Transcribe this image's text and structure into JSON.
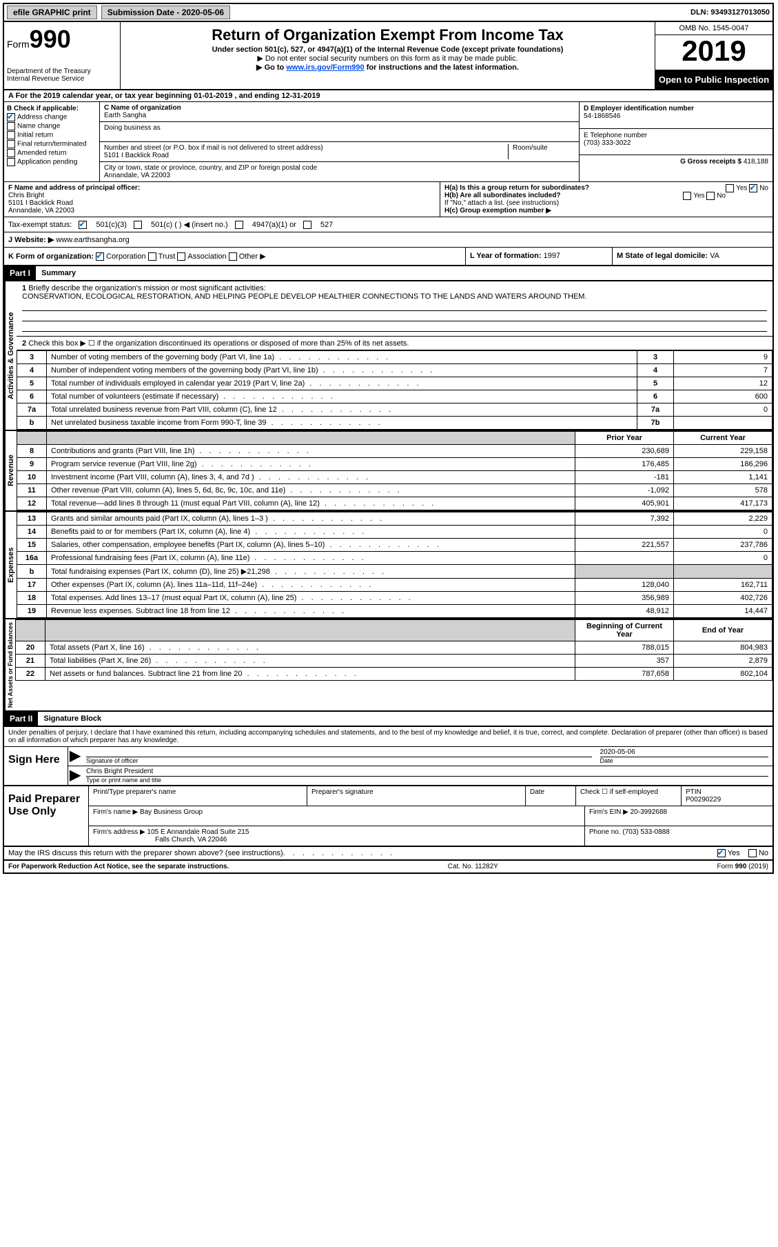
{
  "topbar": {
    "efile": "efile GRAPHIC print",
    "submission_label": "Submission Date - 2020-05-06",
    "dln": "DLN: 93493127013050"
  },
  "header": {
    "form_word": "Form",
    "form_num": "990",
    "dept": "Department of the Treasury",
    "irs": "Internal Revenue Service",
    "title": "Return of Organization Exempt From Income Tax",
    "subtitle": "Under section 501(c), 527, or 4947(a)(1) of the Internal Revenue Code (except private foundations)",
    "warn1": "▶ Do not enter social security numbers on this form as it may be made public.",
    "warn2_pre": "▶ Go to ",
    "warn2_link": "www.irs.gov/Form990",
    "warn2_post": " for instructions and the latest information.",
    "omb": "OMB No. 1545-0047",
    "year": "2019",
    "inspection": "Open to Public Inspection"
  },
  "period": "A For the 2019 calendar year, or tax year beginning 01-01-2019    , and ending 12-31-2019",
  "boxB": {
    "label": "B Check if applicable:",
    "address_change": "Address change",
    "name_change": "Name change",
    "initial": "Initial return",
    "final": "Final return/terminated",
    "amended": "Amended return",
    "application": "Application pending"
  },
  "boxC": {
    "name_label": "C Name of organization",
    "name": "Earth Sangha",
    "dba_label": "Doing business as",
    "addr_label": "Number and street (or P.O. box if mail is not delivered to street address)",
    "room_label": "Room/suite",
    "addr": "5101 I Backlick Road",
    "city_label": "City or town, state or province, country, and ZIP or foreign postal code",
    "city": "Annandale, VA  22003"
  },
  "boxD": {
    "label": "D Employer identification number",
    "ein": "54-1868546"
  },
  "boxE": {
    "label": "E Telephone number",
    "phone": "(703) 333-3022"
  },
  "boxG": {
    "label": "G Gross receipts $",
    "amount": "418,188"
  },
  "boxF": {
    "label": "F  Name and address of principal officer:",
    "name": "Chris Bright",
    "addr1": "5101 I Backlick Road",
    "addr2": "Annandale, VA  22003"
  },
  "boxH": {
    "ha": "H(a)  Is this a group return for subordinates?",
    "hb": "H(b)  Are all subordinates included?",
    "hb_note": "If \"No,\" attach a list. (see instructions)",
    "hc": "H(c)  Group exemption number ▶",
    "yes": "Yes",
    "no": "No"
  },
  "taxStatus": {
    "label": "Tax-exempt status:",
    "c3": "501(c)(3)",
    "c": "501(c) (  ) ◀ (insert no.)",
    "a1": "4947(a)(1) or",
    "s527": "527"
  },
  "boxJ": {
    "label": "J   Website: ▶",
    "url": "www.earthsangha.org"
  },
  "boxK": {
    "label": "K Form of organization:",
    "corp": "Corporation",
    "trust": "Trust",
    "assoc": "Association",
    "other": "Other ▶"
  },
  "boxL": {
    "label": "L Year of formation:",
    "val": "1997"
  },
  "boxM": {
    "label": "M State of legal domicile:",
    "val": "VA"
  },
  "part1": {
    "header": "Part I",
    "title": "Summary",
    "side1": "Activities & Governance",
    "side2": "Revenue",
    "side3": "Expenses",
    "side4": "Net Assets or Fund Balances",
    "q1": "Briefly describe the organization's mission or most significant activities:",
    "mission": "CONSERVATION, ECOLOGICAL RESTORATION, AND HELPING PEOPLE DEVELOP HEALTHIER CONNECTIONS TO THE LANDS AND WATERS AROUND THEM.",
    "q2": "Check this box ▶ ☐  if the organization discontinued its operations or disposed of more than 25% of its net assets.",
    "rows_gov": [
      {
        "n": "3",
        "label": "Number of voting members of the governing body (Part VI, line 1a)",
        "box": "3",
        "val": "9"
      },
      {
        "n": "4",
        "label": "Number of independent voting members of the governing body (Part VI, line 1b)",
        "box": "4",
        "val": "7"
      },
      {
        "n": "5",
        "label": "Total number of individuals employed in calendar year 2019 (Part V, line 2a)",
        "box": "5",
        "val": "12"
      },
      {
        "n": "6",
        "label": "Total number of volunteers (estimate if necessary)",
        "box": "6",
        "val": "600"
      },
      {
        "n": "7a",
        "label": "Total unrelated business revenue from Part VIII, column (C), line 12",
        "box": "7a",
        "val": "0"
      },
      {
        "n": "b",
        "label": "Net unrelated business taxable income from Form 990-T, line 39",
        "box": "7b",
        "val": ""
      }
    ],
    "prior_year": "Prior Year",
    "current_year": "Current Year",
    "rows_rev": [
      {
        "n": "8",
        "label": "Contributions and grants (Part VIII, line 1h)",
        "py": "230,689",
        "cy": "229,158"
      },
      {
        "n": "9",
        "label": "Program service revenue (Part VIII, line 2g)",
        "py": "176,485",
        "cy": "186,296"
      },
      {
        "n": "10",
        "label": "Investment income (Part VIII, column (A), lines 3, 4, and 7d )",
        "py": "-181",
        "cy": "1,141"
      },
      {
        "n": "11",
        "label": "Other revenue (Part VIII, column (A), lines 5, 6d, 8c, 9c, 10c, and 11e)",
        "py": "-1,092",
        "cy": "578"
      },
      {
        "n": "12",
        "label": "Total revenue—add lines 8 through 11 (must equal Part VIII, column (A), line 12)",
        "py": "405,901",
        "cy": "417,173"
      }
    ],
    "rows_exp": [
      {
        "n": "13",
        "label": "Grants and similar amounts paid (Part IX, column (A), lines 1–3 )",
        "py": "7,392",
        "cy": "2,229"
      },
      {
        "n": "14",
        "label": "Benefits paid to or for members (Part IX, column (A), line 4)",
        "py": "",
        "cy": "0"
      },
      {
        "n": "15",
        "label": "Salaries, other compensation, employee benefits (Part IX, column (A), lines 5–10)",
        "py": "221,557",
        "cy": "237,786"
      },
      {
        "n": "16a",
        "label": "Professional fundraising fees (Part IX, column (A), line 11e)",
        "py": "",
        "cy": "0"
      },
      {
        "n": "b",
        "label": "Total fundraising expenses (Part IX, column (D), line 25) ▶21,298",
        "py": "SHADED",
        "cy": "SHADED"
      },
      {
        "n": "17",
        "label": "Other expenses (Part IX, column (A), lines 11a–11d, 11f–24e)",
        "py": "128,040",
        "cy": "162,711"
      },
      {
        "n": "18",
        "label": "Total expenses. Add lines 13–17 (must equal Part IX, column (A), line 25)",
        "py": "356,989",
        "cy": "402,726"
      },
      {
        "n": "19",
        "label": "Revenue less expenses. Subtract line 18 from line 12",
        "py": "48,912",
        "cy": "14,447"
      }
    ],
    "boy": "Beginning of Current Year",
    "eoy": "End of Year",
    "rows_net": [
      {
        "n": "20",
        "label": "Total assets (Part X, line 16)",
        "py": "788,015",
        "cy": "804,983"
      },
      {
        "n": "21",
        "label": "Total liabilities (Part X, line 26)",
        "py": "357",
        "cy": "2,879"
      },
      {
        "n": "22",
        "label": "Net assets or fund balances. Subtract line 21 from line 20",
        "py": "787,658",
        "cy": "802,104"
      }
    ]
  },
  "part2": {
    "header": "Part II",
    "title": "Signature Block",
    "declare": "Under penalties of perjury, I declare that I have examined this return, including accompanying schedules and statements, and to the best of my knowledge and belief, it is true, correct, and complete. Declaration of preparer (other than officer) is based on all information of which preparer has any knowledge.",
    "sign_here": "Sign Here",
    "sig_officer": "Signature of officer",
    "date_label": "Date",
    "sig_date": "2020-05-06",
    "name_title": "Chris Bright President",
    "name_title_cap": "Type or print name and title",
    "paid": "Paid Preparer Use Only",
    "prep_name_label": "Print/Type preparer's name",
    "prep_sig_label": "Preparer's signature",
    "check_self": "Check ☐ if self-employed",
    "ptin_label": "PTIN",
    "ptin": "P00290229",
    "firm_name_label": "Firm's name    ▶",
    "firm_name": "Bay Business Group",
    "firm_ein_label": "Firm's EIN ▶",
    "firm_ein": "20-3992688",
    "firm_addr_label": "Firm's address ▶",
    "firm_addr1": "105 E Annandale Road Suite 215",
    "firm_addr2": "Falls Church, VA  22046",
    "phone_label": "Phone no.",
    "phone": "(703) 533-0888",
    "discuss": "May the IRS discuss this return with the preparer shown above? (see instructions)"
  },
  "footer": {
    "left": "For Paperwork Reduction Act Notice, see the separate instructions.",
    "mid": "Cat. No. 11282Y",
    "right": "Form 990 (2019)"
  }
}
